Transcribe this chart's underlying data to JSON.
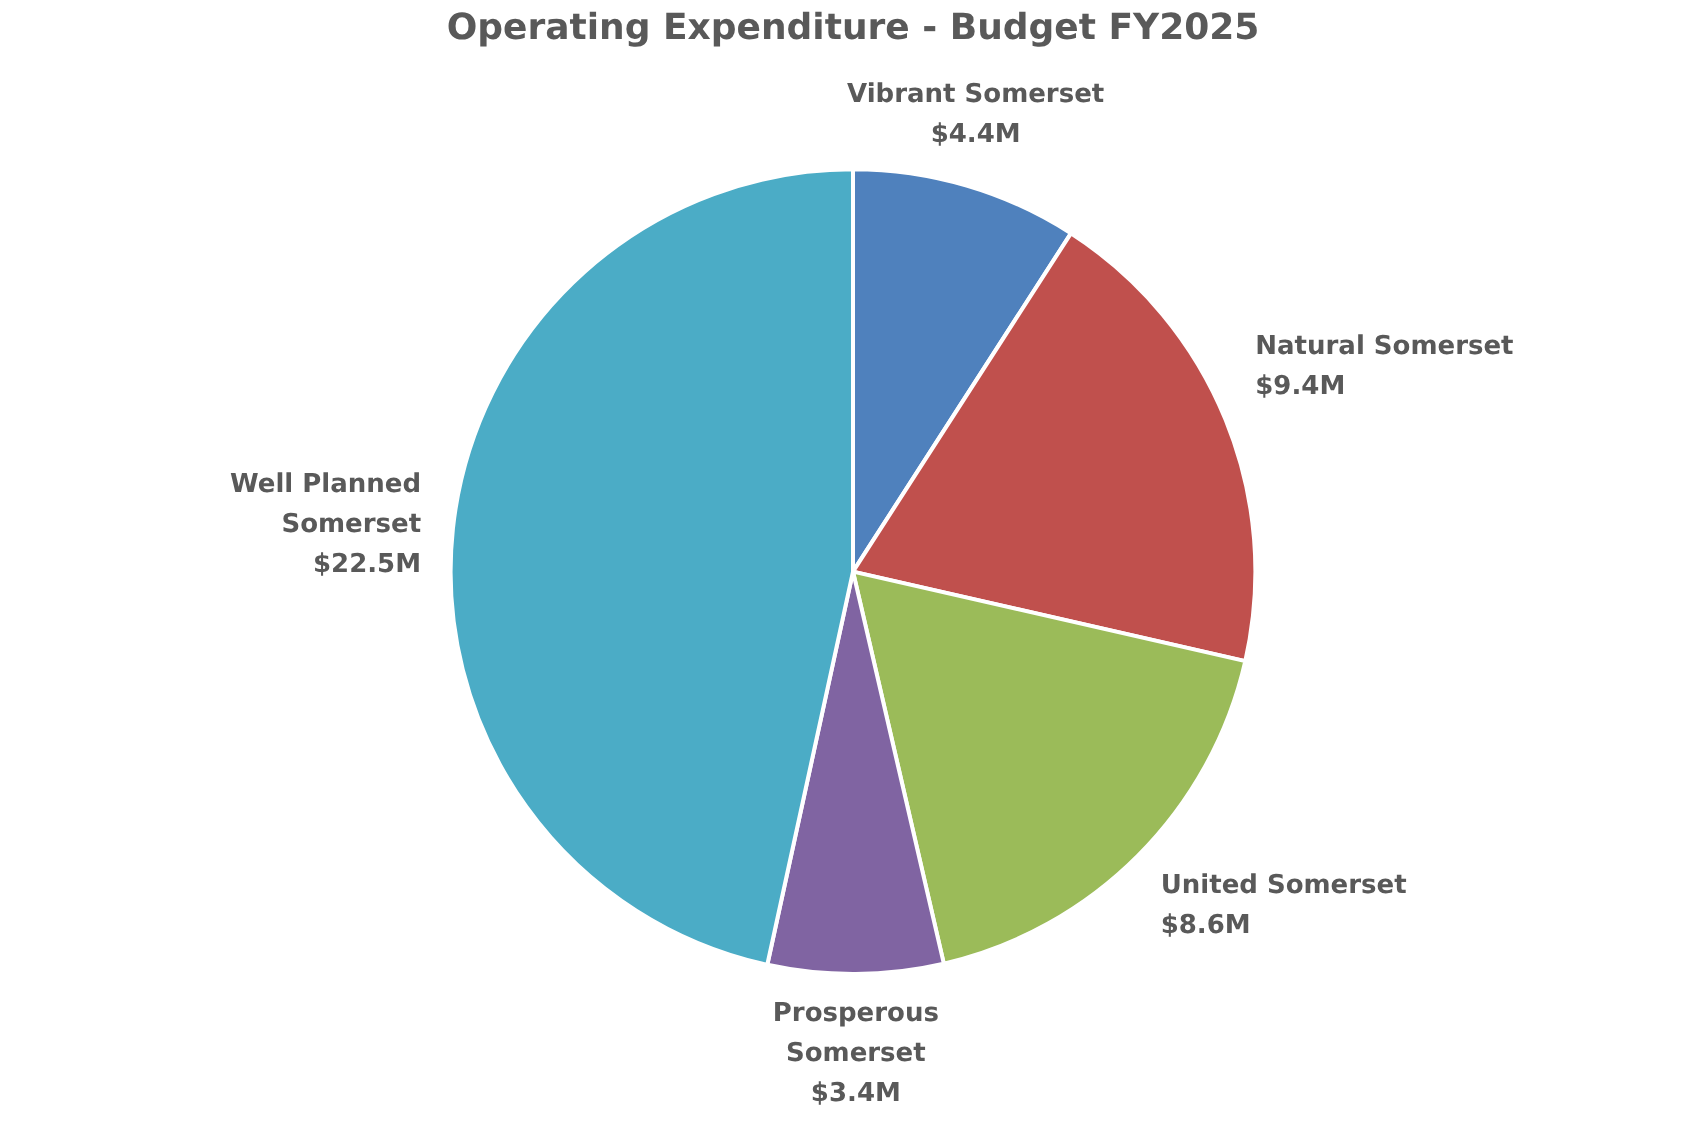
{
  "chart_data": {
    "type": "pie",
    "title": "Operating Expenditure - Budget FY2025",
    "categories": [
      "Vibrant Somerset",
      "Natural Somerset",
      "United Somerset",
      "Prosperous Somerset",
      "Well Planned Somerset"
    ],
    "values": [
      4.4,
      9.4,
      8.6,
      3.4,
      22.5
    ],
    "value_labels": [
      "$4.4M",
      "$9.4M",
      "$8.6M",
      "$3.4M",
      "$22.5M"
    ],
    "colors": [
      "#4f81bd",
      "#c0504d",
      "#9bbb59",
      "#8064a2",
      "#4bacc6"
    ]
  }
}
